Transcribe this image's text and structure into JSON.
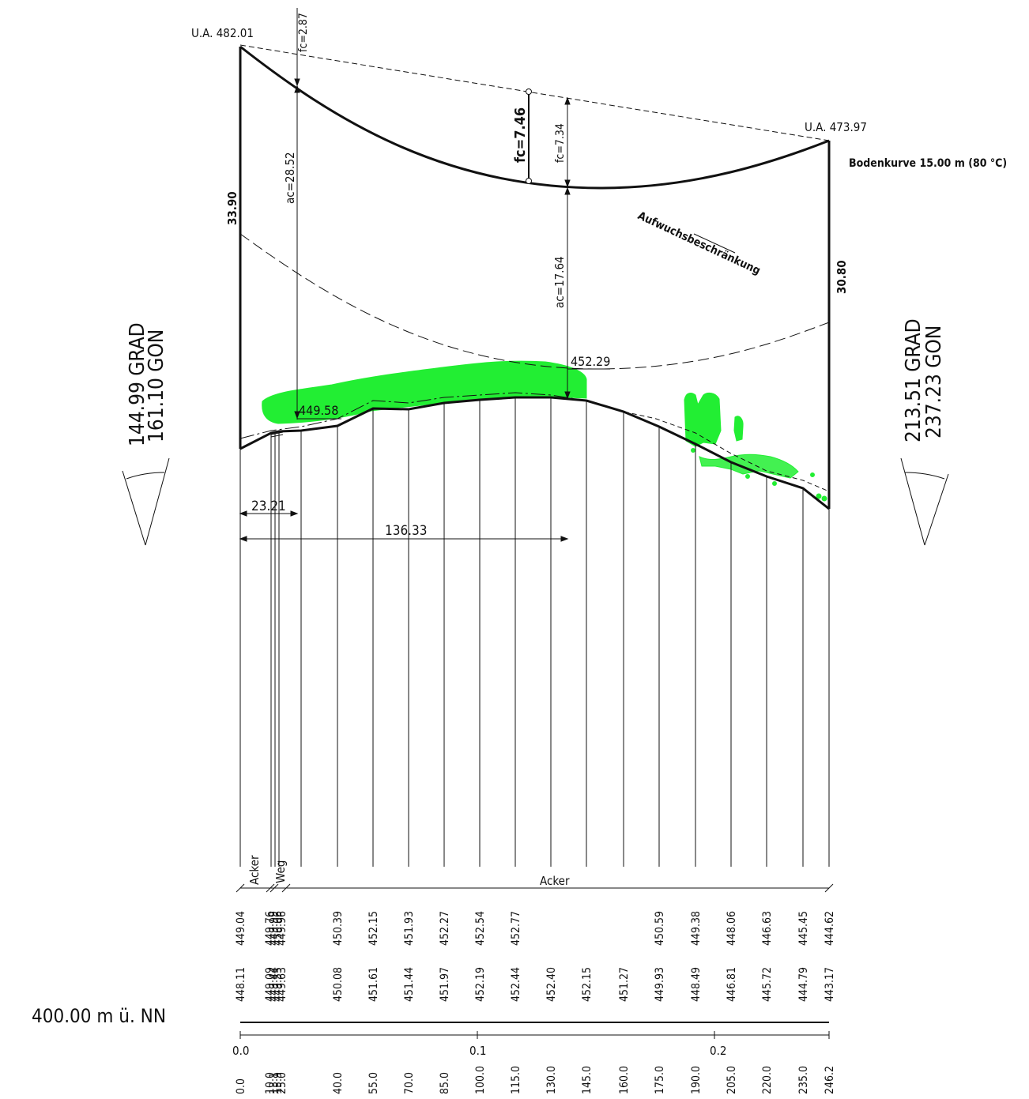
{
  "left_support": {
    "label": "U.A. 482.01",
    "height": "33.90"
  },
  "right_support": {
    "label": "U.A. 473.97",
    "height": "30.80"
  },
  "curve_title": "Bodenkurve 15.00 m (80 °C)",
  "sag": {
    "fc_left": "fc=2.87",
    "fc_main": "fc=7.46",
    "fc_mid": "fc=7.34"
  },
  "clearance": {
    "ac_left": "ac=28.52",
    "ac_mid": "ac=17.64",
    "z_mid": "452.29",
    "z_left": "449.58"
  },
  "restriction_label": "Aufwuchsbeschränkung",
  "dimensions": {
    "d1": "23.21",
    "d2": "136.33"
  },
  "angle_left": {
    "grad": "144.99 GRAD",
    "gon": "161.10 GON"
  },
  "angle_right": {
    "grad": "213.51 GRAD",
    "gon": "237.23 GON"
  },
  "land_use": {
    "acker_left": "Acker",
    "weg": "Weg",
    "acker_main": "Acker"
  },
  "datum": "400.00 m ü. NN",
  "scale_labels": [
    "0.0",
    "0.1",
    "0.2"
  ],
  "profile": {
    "stations": [
      "0.0",
      "10.0",
      "13.1",
      "15.9",
      "25.0",
      "40.0",
      "55.0",
      "70.0",
      "85.0",
      "100.0",
      "115.0",
      "130.0",
      "145.0",
      "160.0",
      "175.0",
      "190.0",
      "205.0",
      "220.0",
      "235.0",
      "246.2"
    ],
    "ground": [
      "448.11",
      "449.09",
      "449.44",
      "449.55",
      "449.63",
      "450.08",
      "451.61",
      "451.44",
      "451.97",
      "452.19",
      "452.44",
      "452.40",
      "452.15",
      "451.27",
      "449.93",
      "448.49",
      "446.81",
      "445.72",
      "444.79",
      "443.17"
    ],
    "upper": [
      "449.04",
      "449.76",
      "449.99",
      "450.06",
      "449.96",
      "450.39",
      "452.15",
      "451.93",
      "452.27",
      "452.54",
      "452.77",
      "",
      "",
      "",
      "450.59",
      "449.38",
      "448.06",
      "446.63",
      "445.45",
      "444.62"
    ]
  },
  "colors": {
    "line": "#111111",
    "vegetation": "#22ee33"
  }
}
